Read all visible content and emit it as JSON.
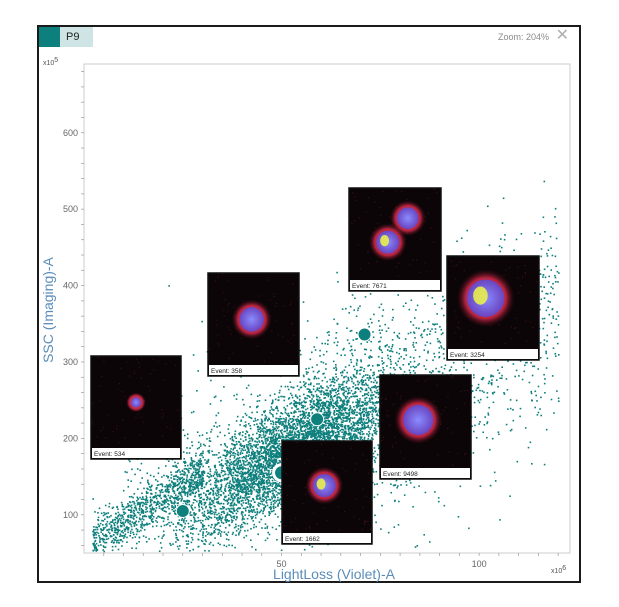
{
  "header": {
    "tab_label": "P9",
    "tab_color": "#0d7f7c",
    "zoom_text": "Zoom: 204%",
    "close_icon": "close-icon"
  },
  "chart_data": {
    "type": "scatter",
    "title": "",
    "xlabel": "LightLoss (Violet)-A",
    "ylabel": "SSC (Imaging)-A",
    "x_multiplier": "x10",
    "x_multiplier_exp": "6",
    "y_multiplier": "x10",
    "y_multiplier_exp": "5",
    "xlim": [
      0,
      123
    ],
    "ylim": [
      50,
      690
    ],
    "x_ticks": [
      {
        "value": 50,
        "label": "50"
      },
      {
        "value": 100,
        "label": "100"
      }
    ],
    "y_ticks": [
      {
        "value": 100,
        "label": "100"
      },
      {
        "value": 200,
        "label": "200"
      },
      {
        "value": 300,
        "label": "300"
      },
      {
        "value": 400,
        "label": "400"
      },
      {
        "value": 500,
        "label": "500"
      },
      {
        "value": 600,
        "label": "600"
      }
    ],
    "point_color": "#0d7f7c",
    "grid": false,
    "highlighted_events": [
      {
        "x": 25,
        "y": 105,
        "event": "Event: 534"
      },
      {
        "x": 50,
        "y": 155,
        "event": "Event: 1662",
        "selected": true
      },
      {
        "x": 59,
        "y": 225,
        "event": "Event: 358"
      },
      {
        "x": 71,
        "y": 336,
        "event": "Event: 7671"
      },
      {
        "x": 76,
        "y": 236,
        "event": "Event: 9498"
      },
      {
        "x": 95,
        "y": 272,
        "event": "Event: 3254"
      }
    ]
  }
}
